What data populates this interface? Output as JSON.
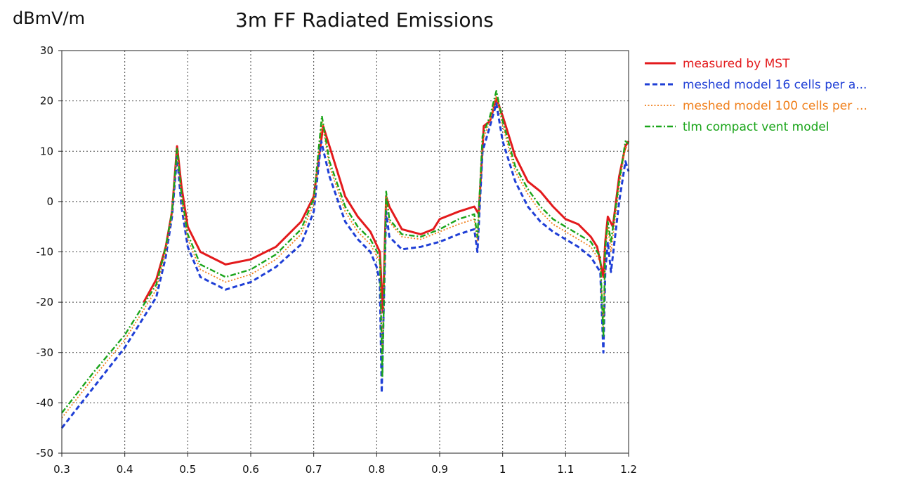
{
  "chart_data": {
    "type": "line",
    "title": "3m FF Radiated Emissions",
    "ylabel": "dBmV/m",
    "xlabel": "",
    "xlim": [
      0.3,
      1.2
    ],
    "ylim": [
      -50,
      30
    ],
    "x_ticks": [
      0.3,
      0.4,
      0.5,
      0.6,
      0.7,
      0.8,
      0.9,
      1,
      1.1,
      1.2
    ],
    "x_tick_labels": [
      "0.3",
      "0.4",
      "0.5",
      "0.6",
      "0.7",
      "0.8",
      "0.9",
      "1",
      "1.1",
      "1.2"
    ],
    "y_ticks": [
      30,
      20,
      10,
      0,
      -10,
      -20,
      -30,
      -40,
      -50
    ],
    "y_tick_labels": [
      "30",
      "20",
      "10",
      "0",
      "-10",
      "-20",
      "-30",
      "-40",
      "-50"
    ],
    "grid": true,
    "legend_position": "right",
    "series": [
      {
        "name": "measured by MST",
        "color": "#e31a1c",
        "style": "solid",
        "points": [
          [
            0.43,
            -20
          ],
          [
            0.45,
            -15.5
          ],
          [
            0.465,
            -9
          ],
          [
            0.475,
            -2
          ],
          [
            0.483,
            11
          ],
          [
            0.49,
            3
          ],
          [
            0.5,
            -5
          ],
          [
            0.52,
            -10
          ],
          [
            0.56,
            -12.5
          ],
          [
            0.6,
            -11.5
          ],
          [
            0.64,
            -9
          ],
          [
            0.68,
            -4
          ],
          [
            0.7,
            1
          ],
          [
            0.715,
            15
          ],
          [
            0.73,
            9
          ],
          [
            0.75,
            1
          ],
          [
            0.77,
            -3
          ],
          [
            0.79,
            -6
          ],
          [
            0.805,
            -10
          ],
          [
            0.81,
            -22
          ],
          [
            0.815,
            1
          ],
          [
            0.82,
            -1
          ],
          [
            0.84,
            -5.5
          ],
          [
            0.87,
            -6.5
          ],
          [
            0.89,
            -5.5
          ],
          [
            0.9,
            -3.5
          ],
          [
            0.93,
            -2
          ],
          [
            0.955,
            -1
          ],
          [
            0.962,
            -2.5
          ],
          [
            0.97,
            15
          ],
          [
            0.98,
            16
          ],
          [
            0.99,
            20.5
          ],
          [
            1.0,
            17
          ],
          [
            1.02,
            9
          ],
          [
            1.04,
            4
          ],
          [
            1.06,
            2
          ],
          [
            1.08,
            -1
          ],
          [
            1.1,
            -3.5
          ],
          [
            1.12,
            -4.5
          ],
          [
            1.14,
            -7
          ],
          [
            1.15,
            -9
          ],
          [
            1.16,
            -15
          ],
          [
            1.163,
            -8
          ],
          [
            1.167,
            -3
          ],
          [
            1.175,
            -5
          ],
          [
            1.185,
            5
          ],
          [
            1.195,
            11
          ],
          [
            1.2,
            12
          ]
        ]
      },
      {
        "name": "meshed model 16 cells per a...",
        "color": "#1f3fd6",
        "style": "dashed",
        "points": [
          [
            0.3,
            -45
          ],
          [
            0.35,
            -37
          ],
          [
            0.4,
            -29
          ],
          [
            0.45,
            -19
          ],
          [
            0.465,
            -11
          ],
          [
            0.475,
            -3
          ],
          [
            0.483,
            9
          ],
          [
            0.49,
            -1
          ],
          [
            0.5,
            -9
          ],
          [
            0.52,
            -15
          ],
          [
            0.56,
            -17.5
          ],
          [
            0.6,
            -16
          ],
          [
            0.64,
            -13
          ],
          [
            0.68,
            -8.5
          ],
          [
            0.7,
            -2
          ],
          [
            0.712,
            12
          ],
          [
            0.725,
            5
          ],
          [
            0.75,
            -4
          ],
          [
            0.77,
            -7.5
          ],
          [
            0.79,
            -10
          ],
          [
            0.8,
            -13
          ],
          [
            0.805,
            -16
          ],
          [
            0.808,
            -38
          ],
          [
            0.81,
            -27
          ],
          [
            0.815,
            -2
          ],
          [
            0.82,
            -7
          ],
          [
            0.84,
            -9.5
          ],
          [
            0.87,
            -9
          ],
          [
            0.9,
            -8
          ],
          [
            0.93,
            -6.5
          ],
          [
            0.955,
            -5.5
          ],
          [
            0.96,
            -10
          ],
          [
            0.968,
            10
          ],
          [
            0.98,
            15
          ],
          [
            0.99,
            19.5
          ],
          [
            1.0,
            12
          ],
          [
            1.02,
            4
          ],
          [
            1.04,
            -1
          ],
          [
            1.06,
            -4
          ],
          [
            1.08,
            -6
          ],
          [
            1.1,
            -7.5
          ],
          [
            1.12,
            -9
          ],
          [
            1.14,
            -11
          ],
          [
            1.155,
            -14
          ],
          [
            1.16,
            -30
          ],
          [
            1.163,
            -14
          ],
          [
            1.167,
            -8
          ],
          [
            1.172,
            -14
          ],
          [
            1.185,
            0
          ],
          [
            1.195,
            8
          ],
          [
            1.2,
            6
          ]
        ]
      },
      {
        "name": "meshed model 100 cells per ...",
        "color": "#f07f1a",
        "style": "dotted",
        "points": [
          [
            0.3,
            -43
          ],
          [
            0.35,
            -35
          ],
          [
            0.4,
            -27.5
          ],
          [
            0.45,
            -17.5
          ],
          [
            0.465,
            -10
          ],
          [
            0.475,
            -2.5
          ],
          [
            0.483,
            10
          ],
          [
            0.49,
            0.5
          ],
          [
            0.5,
            -7.5
          ],
          [
            0.52,
            -13.5
          ],
          [
            0.56,
            -16
          ],
          [
            0.6,
            -14.5
          ],
          [
            0.64,
            -11.5
          ],
          [
            0.68,
            -6.5
          ],
          [
            0.7,
            -0.5
          ],
          [
            0.713,
            16
          ],
          [
            0.725,
            7
          ],
          [
            0.75,
            -2
          ],
          [
            0.77,
            -6
          ],
          [
            0.79,
            -8.5
          ],
          [
            0.805,
            -12
          ],
          [
            0.809,
            -30
          ],
          [
            0.815,
            1
          ],
          [
            0.82,
            -4
          ],
          [
            0.84,
            -7
          ],
          [
            0.87,
            -7.5
          ],
          [
            0.9,
            -6
          ],
          [
            0.93,
            -4.5
          ],
          [
            0.955,
            -3.5
          ],
          [
            0.96,
            -8
          ],
          [
            0.968,
            12
          ],
          [
            0.98,
            16
          ],
          [
            0.99,
            21
          ],
          [
            1.0,
            15
          ],
          [
            1.02,
            6
          ],
          [
            1.04,
            1.5
          ],
          [
            1.06,
            -2
          ],
          [
            1.08,
            -4.5
          ],
          [
            1.1,
            -6
          ],
          [
            1.12,
            -7.5
          ],
          [
            1.14,
            -9
          ],
          [
            1.155,
            -12
          ],
          [
            1.16,
            -25
          ],
          [
            1.163,
            -10
          ],
          [
            1.167,
            -5
          ],
          [
            1.172,
            -10
          ],
          [
            1.185,
            3
          ],
          [
            1.195,
            11
          ],
          [
            1.2,
            10
          ]
        ]
      },
      {
        "name": "tlm compact vent model",
        "color": "#1aa51a",
        "style": "dashdot",
        "points": [
          [
            0.3,
            -42
          ],
          [
            0.35,
            -34
          ],
          [
            0.4,
            -26.5
          ],
          [
            0.45,
            -16.5
          ],
          [
            0.465,
            -9
          ],
          [
            0.475,
            -2
          ],
          [
            0.483,
            10.5
          ],
          [
            0.49,
            1.5
          ],
          [
            0.5,
            -6.5
          ],
          [
            0.52,
            -12.5
          ],
          [
            0.56,
            -15
          ],
          [
            0.6,
            -13.5
          ],
          [
            0.64,
            -10.5
          ],
          [
            0.68,
            -5.5
          ],
          [
            0.7,
            0.5
          ],
          [
            0.713,
            17
          ],
          [
            0.725,
            8
          ],
          [
            0.75,
            -1
          ],
          [
            0.77,
            -5
          ],
          [
            0.79,
            -7.5
          ],
          [
            0.805,
            -11
          ],
          [
            0.809,
            -35
          ],
          [
            0.815,
            2
          ],
          [
            0.82,
            -3.5
          ],
          [
            0.84,
            -6.5
          ],
          [
            0.87,
            -7
          ],
          [
            0.9,
            -5.5
          ],
          [
            0.93,
            -3.5
          ],
          [
            0.955,
            -2.5
          ],
          [
            0.96,
            -7
          ],
          [
            0.968,
            13
          ],
          [
            0.98,
            17
          ],
          [
            0.99,
            22
          ],
          [
            1.0,
            16
          ],
          [
            1.02,
            7
          ],
          [
            1.04,
            2.5
          ],
          [
            1.06,
            -1
          ],
          [
            1.08,
            -3.5
          ],
          [
            1.1,
            -5
          ],
          [
            1.12,
            -6.5
          ],
          [
            1.14,
            -8
          ],
          [
            1.155,
            -11
          ],
          [
            1.16,
            -27
          ],
          [
            1.163,
            -9
          ],
          [
            1.167,
            -4
          ],
          [
            1.172,
            -8
          ],
          [
            1.185,
            4
          ],
          [
            1.195,
            12
          ],
          [
            1.2,
            11.5
          ]
        ]
      }
    ]
  }
}
